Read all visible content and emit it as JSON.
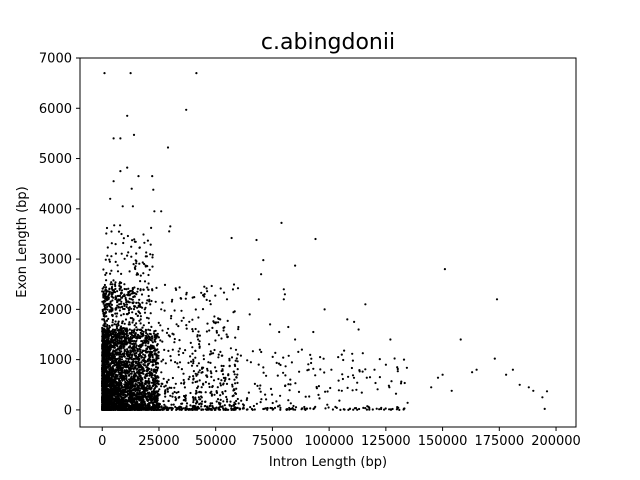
{
  "chart_data": {
    "type": "scatter",
    "title": "c.abingdonii",
    "xlabel": "Intron Length (bp)",
    "ylabel": "Exon Length (bp)",
    "xlim": [
      -9800,
      208800
    ],
    "ylim": [
      -340,
      7000
    ],
    "xticks": [
      0,
      25000,
      50000,
      75000,
      100000,
      125000,
      150000,
      175000,
      200000
    ],
    "xtick_labels": [
      "0",
      "25000",
      "50000",
      "75000",
      "100000",
      "125000",
      "150000",
      "175000",
      "200000"
    ],
    "yticks": [
      0,
      1000,
      2000,
      3000,
      4000,
      5000,
      6000,
      7000
    ],
    "ytick_labels": [
      "0",
      "1000",
      "2000",
      "3000",
      "4000",
      "5000",
      "6000",
      "7000"
    ],
    "grid": false,
    "marker_color": "#000000",
    "notable_points": [
      {
        "x": 1000,
        "y": 6700
      },
      {
        "x": 12500,
        "y": 6700
      },
      {
        "x": 41500,
        "y": 6700
      },
      {
        "x": 37000,
        "y": 5970
      },
      {
        "x": 11000,
        "y": 5850
      },
      {
        "x": 14000,
        "y": 5470
      },
      {
        "x": 5000,
        "y": 5400
      },
      {
        "x": 8000,
        "y": 5400
      },
      {
        "x": 29000,
        "y": 5220
      },
      {
        "x": 11000,
        "y": 4820
      },
      {
        "x": 8000,
        "y": 4750
      },
      {
        "x": 22000,
        "y": 4650
      },
      {
        "x": 16000,
        "y": 4650
      },
      {
        "x": 5000,
        "y": 4550
      },
      {
        "x": 13000,
        "y": 4400
      },
      {
        "x": 22500,
        "y": 4380
      },
      {
        "x": 3500,
        "y": 4200
      },
      {
        "x": 9000,
        "y": 4050
      },
      {
        "x": 13500,
        "y": 4050
      },
      {
        "x": 23000,
        "y": 3950
      },
      {
        "x": 26000,
        "y": 3950
      },
      {
        "x": 30000,
        "y": 3650
      },
      {
        "x": 29500,
        "y": 3550
      },
      {
        "x": 57000,
        "y": 3420
      },
      {
        "x": 68000,
        "y": 3380
      },
      {
        "x": 94000,
        "y": 3400
      },
      {
        "x": 71000,
        "y": 2980
      },
      {
        "x": 70000,
        "y": 2700
      },
      {
        "x": 85000,
        "y": 2870
      },
      {
        "x": 79000,
        "y": 3720
      },
      {
        "x": 151000,
        "y": 2800
      },
      {
        "x": 174000,
        "y": 2200
      },
      {
        "x": 80000,
        "y": 2400
      },
      {
        "x": 80500,
        "y": 2300
      },
      {
        "x": 80000,
        "y": 2200
      },
      {
        "x": 98000,
        "y": 2000
      },
      {
        "x": 116000,
        "y": 2100
      },
      {
        "x": 108000,
        "y": 1800
      },
      {
        "x": 111000,
        "y": 1750
      },
      {
        "x": 113000,
        "y": 1600
      },
      {
        "x": 158000,
        "y": 1400
      },
      {
        "x": 127000,
        "y": 1400
      },
      {
        "x": 173000,
        "y": 1020
      },
      {
        "x": 178000,
        "y": 700
      },
      {
        "x": 181000,
        "y": 800
      },
      {
        "x": 184000,
        "y": 500
      },
      {
        "x": 188000,
        "y": 450
      },
      {
        "x": 190000,
        "y": 380
      },
      {
        "x": 194000,
        "y": 250
      },
      {
        "x": 196000,
        "y": 370
      },
      {
        "x": 195000,
        "y": 20
      },
      {
        "x": 163000,
        "y": 750
      },
      {
        "x": 165000,
        "y": 800
      },
      {
        "x": 148000,
        "y": 640
      },
      {
        "x": 150000,
        "y": 700
      },
      {
        "x": 145000,
        "y": 450
      },
      {
        "x": 154000,
        "y": 380
      },
      {
        "x": 133000,
        "y": 1000
      },
      {
        "x": 130000,
        "y": 850
      },
      {
        "x": 125000,
        "y": 900
      },
      {
        "x": 120000,
        "y": 800
      },
      {
        "x": 118000,
        "y": 650
      },
      {
        "x": 112000,
        "y": 400
      },
      {
        "x": 104000,
        "y": 1050
      },
      {
        "x": 101000,
        "y": 800
      },
      {
        "x": 96000,
        "y": 1050
      },
      {
        "x": 93000,
        "y": 1550
      },
      {
        "x": 91000,
        "y": 800
      },
      {
        "x": 88000,
        "y": 1200
      },
      {
        "x": 85000,
        "y": 1400
      },
      {
        "x": 82000,
        "y": 1650
      },
      {
        "x": 78000,
        "y": 1550
      },
      {
        "x": 74000,
        "y": 1700
      },
      {
        "x": 69000,
        "y": 2200
      },
      {
        "x": 65000,
        "y": 1900
      },
      {
        "x": 60000,
        "y": 1650
      },
      {
        "x": 55000,
        "y": 2200
      },
      {
        "x": 52000,
        "y": 1800
      }
    ],
    "dense_cluster": {
      "x_range": [
        0,
        60000
      ],
      "y_range": [
        0,
        2500
      ],
      "core_x_range": [
        0,
        25000
      ],
      "core_y_range": [
        0,
        1600
      ]
    }
  }
}
